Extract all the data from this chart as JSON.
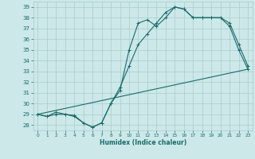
{
  "background_color": "#cce8e8",
  "grid_color": "#aacccc",
  "line_color": "#1a6b6b",
  "xlim": [
    -0.5,
    23.5
  ],
  "ylim": [
    27.5,
    39.5
  ],
  "yticks": [
    28,
    29,
    30,
    31,
    32,
    33,
    34,
    35,
    36,
    37,
    38,
    39
  ],
  "xticks": [
    0,
    1,
    2,
    3,
    4,
    5,
    6,
    7,
    8,
    9,
    10,
    11,
    12,
    13,
    14,
    15,
    16,
    17,
    18,
    19,
    20,
    21,
    22,
    23
  ],
  "xlabel": "Humidex (Indice chaleur)",
  "font_color": "#1a6b6b",
  "series1_x": [
    0,
    1,
    2,
    3,
    4,
    5,
    6,
    7,
    8,
    9,
    10,
    11,
    12,
    13,
    14,
    15,
    16,
    17,
    18,
    19,
    20,
    21,
    22,
    23
  ],
  "series1_y": [
    29,
    28.8,
    29.2,
    29.0,
    28.9,
    28.2,
    27.8,
    28.2,
    30.0,
    31.2,
    35.0,
    37.5,
    37.8,
    37.2,
    38.0,
    39.0,
    38.8,
    38.0,
    38.0,
    38.0,
    38.0,
    37.2,
    35.0,
    33.2
  ],
  "series2_y": [
    29.0,
    28.8,
    29.0,
    29.0,
    28.8,
    28.2,
    27.8,
    28.2,
    30.0,
    31.5,
    33.5,
    35.5,
    36.5,
    37.5,
    38.5,
    39.0,
    38.8,
    38.0,
    38.0,
    38.0,
    38.0,
    37.5,
    35.5,
    33.5
  ],
  "series3_x": [
    0,
    23
  ],
  "series3_y": [
    29.0,
    33.2
  ]
}
